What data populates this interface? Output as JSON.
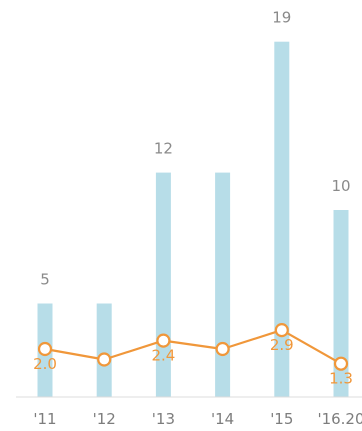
{
  "chart_data": {
    "type": "bar",
    "categories": [
      "'11",
      "'12",
      "'13",
      "'14",
      "'15",
      "'16.20"
    ],
    "series": [
      {
        "type": "bar",
        "values": [
          5,
          5,
          12,
          12,
          19,
          10
        ],
        "data_labels": [
          "5",
          "",
          "12",
          "",
          "19",
          "10"
        ],
        "color": "#b7dde8"
      },
      {
        "type": "line",
        "values": [
          2.0,
          1.5,
          2.4,
          2.0,
          2.9,
          1.3
        ],
        "data_labels": [
          "2.0",
          "",
          "2.4",
          "",
          "2.9",
          "1.3"
        ],
        "color": "#f0973a"
      }
    ],
    "bar_ylim": [
      0,
      20
    ],
    "line_ylim": [
      0,
      12
    ],
    "grid": false,
    "legend": "none",
    "title": "",
    "xlabel": "",
    "ylabel": ""
  }
}
